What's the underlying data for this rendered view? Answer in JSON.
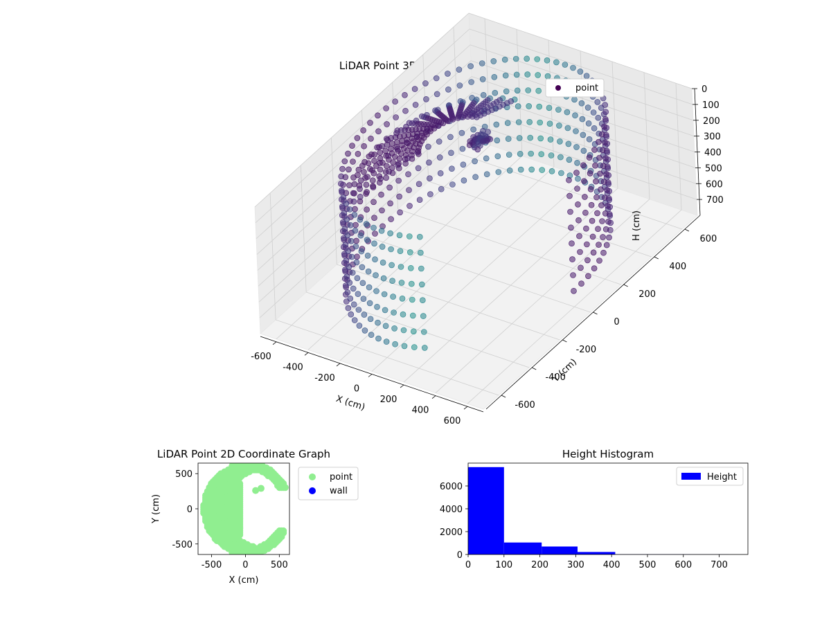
{
  "chart_data": [
    {
      "type": "scatter",
      "projection": "3d",
      "title": "LiDAR Point 3D Coordinate Graph",
      "xlabel": "X (cm)",
      "ylabel": "Y (cm)",
      "zlabel": "H (cm)",
      "xlim": [
        -700,
        700
      ],
      "ylim": [
        -700,
        700
      ],
      "zlim": [
        0,
        800
      ],
      "z_inverted": true,
      "xticks": [
        -600,
        -400,
        -200,
        0,
        200,
        400,
        600
      ],
      "yticks": [
        -600,
        -400,
        -200,
        0,
        200,
        400,
        600
      ],
      "zticks": [
        0,
        100,
        200,
        300,
        400,
        500,
        600,
        700
      ],
      "grid": true,
      "colormap": "viridis",
      "legend": {
        "placement": "top-right",
        "entries": [
          {
            "label": "point",
            "color": "#440154"
          }
        ]
      },
      "series": [
        {
          "name": "point",
          "wall": {
            "radius": 600,
            "theta_start_deg": 0,
            "theta_end_deg": 290,
            "heights": [
              0,
              100,
              200,
              300,
              400,
              500,
              600,
              700
            ]
          },
          "fan": {
            "origin": [
              -110,
              0
            ],
            "dist_from": 170,
            "dist_to": 470,
            "angle_start_deg": 100,
            "angle_end_deg": 230,
            "rays": 18
          }
        }
      ]
    },
    {
      "type": "scatter",
      "title": "LiDAR Point 2D Coordinate Graph",
      "xlabel": "X (cm)",
      "ylabel": "Y (cm)",
      "xlim": [
        -700,
        650
      ],
      "ylim": [
        -650,
        650
      ],
      "xticks": [
        -500,
        0,
        500
      ],
      "yticks": [
        -500,
        0,
        500
      ],
      "legend": {
        "placement": "outside-right",
        "entries": [
          {
            "label": "point",
            "color": "#90ee90"
          },
          {
            "label": "wall",
            "color": "#0000ff"
          }
        ]
      },
      "series": [
        {
          "name": "point",
          "color": "#90ee90",
          "shape": "crescent",
          "outer_radius": 620,
          "inner_center": [
            270,
            0
          ],
          "inner_radius": 560,
          "extra_points": [
            [
              150,
              260
            ],
            [
              230,
              290
            ]
          ]
        },
        {
          "name": "wall",
          "color": "#0000ff",
          "points": []
        }
      ]
    },
    {
      "type": "bar",
      "title": "Height Histogram",
      "xlabel": "",
      "ylabel": "",
      "bins": [
        [
          0,
          100
        ],
        [
          100,
          205
        ],
        [
          205,
          305
        ],
        [
          305,
          410
        ],
        [
          410,
          515
        ],
        [
          515,
          620
        ],
        [
          620,
          725
        ]
      ],
      "values": [
        7650,
        1050,
        700,
        220,
        15,
        10,
        5
      ],
      "xlim": [
        0,
        780
      ],
      "ylim": [
        0,
        8000
      ],
      "xticks": [
        0,
        100,
        200,
        300,
        400,
        500,
        600,
        700
      ],
      "yticks": [
        0,
        2000,
        4000,
        6000
      ],
      "color": "#0000ff",
      "legend": {
        "placement": "top-right",
        "entries": [
          {
            "label": "Height",
            "color": "#0000ff"
          }
        ]
      }
    }
  ]
}
